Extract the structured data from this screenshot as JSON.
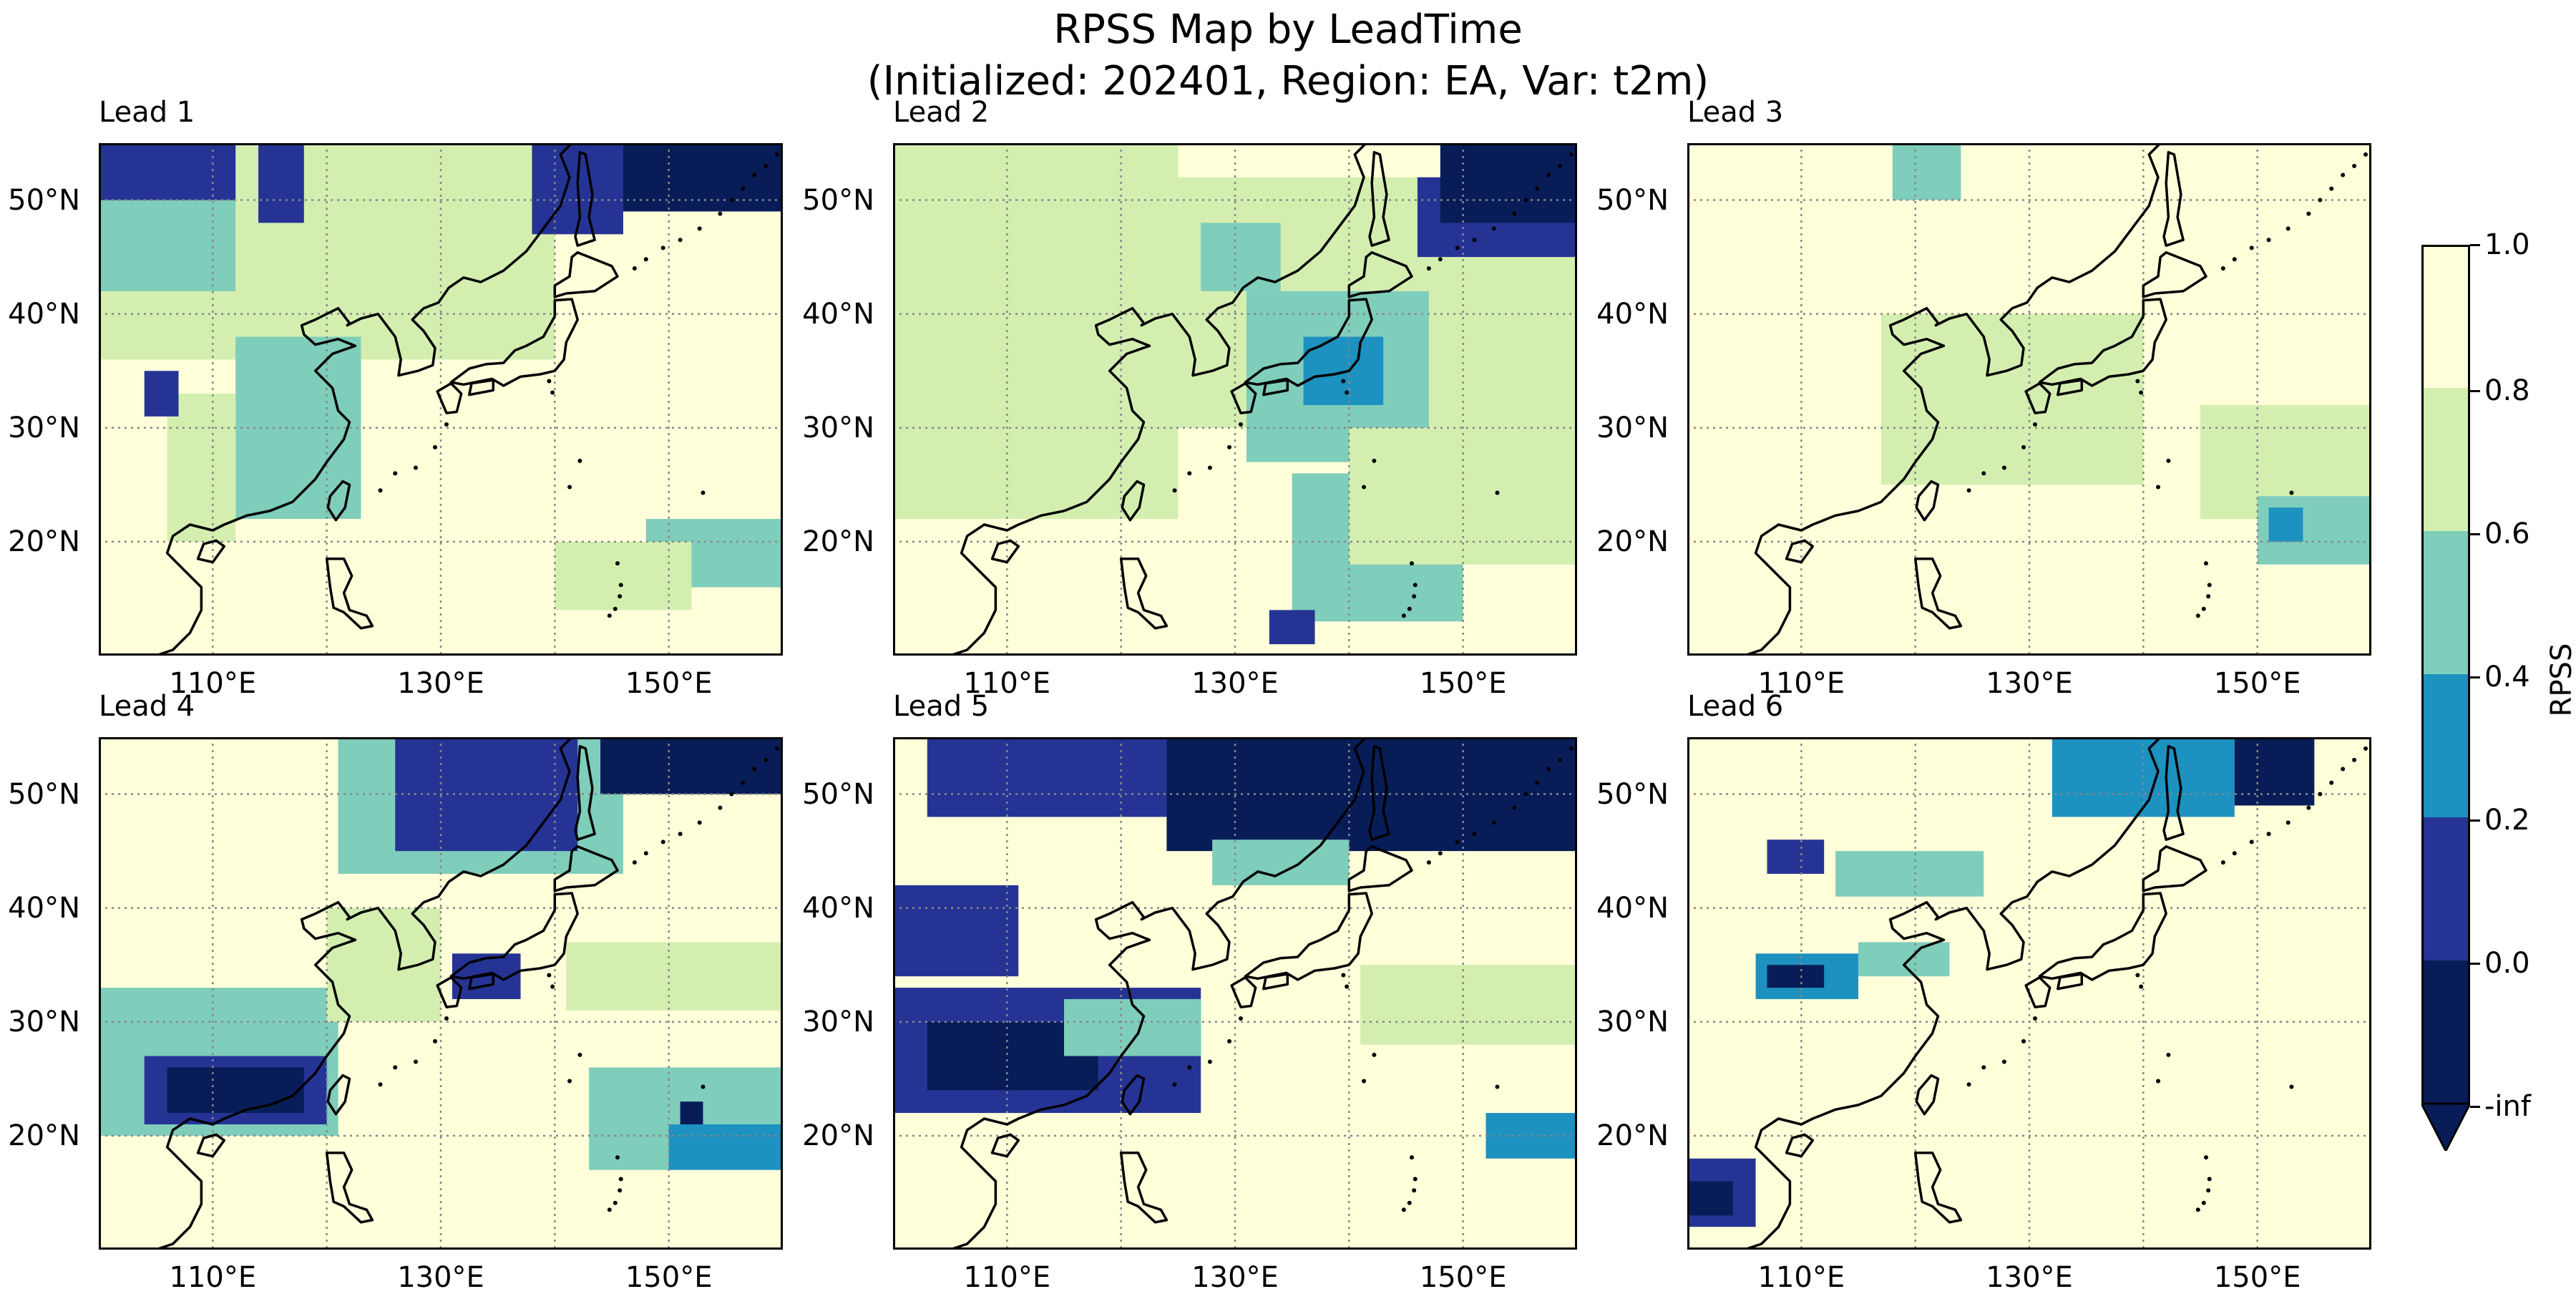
{
  "title_line1": "RPSS Map by LeadTime",
  "title_line2": "(Initialized: 202401, Region: EA, Var: t2m)",
  "panels": [
    {
      "label": "Lead 1"
    },
    {
      "label": "Lead 2"
    },
    {
      "label": "Lead 3"
    },
    {
      "label": "Lead 4"
    },
    {
      "label": "Lead 5"
    },
    {
      "label": "Lead 6"
    }
  ],
  "axes": {
    "lat_ticks": [
      "20°N",
      "30°N",
      "40°N",
      "50°N"
    ],
    "lon_ticks": [
      "110°E",
      "130°E",
      "150°E"
    ]
  },
  "colorbar": {
    "label": "RPSS",
    "ticks": [
      "-inf",
      "0.0",
      "0.2",
      "0.4",
      "0.6",
      "0.8",
      "1.0"
    ],
    "colors": [
      "#081d58",
      "#253494",
      "#1d91c0",
      "#7fcdbb",
      "#d4eeb0",
      "#ffffda"
    ]
  },
  "chart_data": {
    "type": "heatmap",
    "variable": "RPSS",
    "lon_range_degE": [
      100,
      160
    ],
    "lat_range_degN": [
      10,
      55
    ],
    "gridlines": true,
    "levels": [
      0.0,
      0.2,
      0.4,
      0.6,
      0.8,
      1.0
    ],
    "panels": [
      {
        "lead": 1,
        "regions": [
          {
            "class": 4,
            "lon": [
              100,
              140
            ],
            "lat": [
              36,
              55
            ]
          },
          {
            "class": 3,
            "lon": [
              100,
              112
            ],
            "lat": [
              42,
              55
            ]
          },
          {
            "class": 1,
            "lon": [
              100,
              112
            ],
            "lat": [
              50,
              55
            ]
          },
          {
            "class": 1,
            "lon": [
              114,
              118
            ],
            "lat": [
              48,
              55
            ]
          },
          {
            "class": 0,
            "lon": [
              145,
              160
            ],
            "lat": [
              49,
              55
            ]
          },
          {
            "class": 1,
            "lon": [
              138,
              146
            ],
            "lat": [
              47,
              55
            ]
          },
          {
            "class": 3,
            "lon": [
              112,
              123
            ],
            "lat": [
              22,
              38
            ]
          },
          {
            "class": 4,
            "lon": [
              106,
              112
            ],
            "lat": [
              20,
              33
            ]
          },
          {
            "class": 1,
            "lon": [
              104,
              107
            ],
            "lat": [
              31,
              35
            ]
          },
          {
            "class": 3,
            "lon": [
              148,
              160
            ],
            "lat": [
              16,
              22
            ]
          },
          {
            "class": 4,
            "lon": [
              140,
              152
            ],
            "lat": [
              14,
              20
            ]
          }
        ]
      },
      {
        "lead": 2,
        "regions": [
          {
            "class": 4,
            "lon": [
              100,
              125
            ],
            "lat": [
              22,
              55
            ]
          },
          {
            "class": 4,
            "lon": [
              125,
              160
            ],
            "lat": [
              30,
              52
            ]
          },
          {
            "class": 3,
            "lon": [
              131,
              147
            ],
            "lat": [
              27,
              42
            ]
          },
          {
            "class": 2,
            "lon": [
              136,
              143
            ],
            "lat": [
              32,
              38
            ]
          },
          {
            "class": 3,
            "lon": [
              127,
              134
            ],
            "lat": [
              42,
              48
            ]
          },
          {
            "class": 1,
            "lon": [
              146,
              160
            ],
            "lat": [
              45,
              52
            ]
          },
          {
            "class": 0,
            "lon": [
              148,
              160
            ],
            "lat": [
              48,
              55
            ]
          },
          {
            "class": 3,
            "lon": [
              135,
              150
            ],
            "lat": [
              13,
              26
            ]
          },
          {
            "class": 1,
            "lon": [
              133,
              137
            ],
            "lat": [
              11,
              14
            ]
          },
          {
            "class": 4,
            "lon": [
              140,
              160
            ],
            "lat": [
              18,
              30
            ]
          }
        ]
      },
      {
        "lead": 3,
        "regions": [
          {
            "class": 3,
            "lon": [
              118,
              124
            ],
            "lat": [
              50,
              55
            ]
          },
          {
            "class": 4,
            "lon": [
              117,
              140
            ],
            "lat": [
              25,
              40
            ]
          },
          {
            "class": 4,
            "lon": [
              145,
              160
            ],
            "lat": [
              22,
              32
            ]
          },
          {
            "class": 3,
            "lon": [
              150,
              160
            ],
            "lat": [
              18,
              24
            ]
          },
          {
            "class": 2,
            "lon": [
              151,
              154
            ],
            "lat": [
              20,
              23
            ]
          }
        ]
      },
      {
        "lead": 4,
        "regions": [
          {
            "class": 3,
            "lon": [
              121,
              146
            ],
            "lat": [
              43,
              55
            ]
          },
          {
            "class": 1,
            "lon": [
              126,
              142
            ],
            "lat": [
              45,
              55
            ]
          },
          {
            "class": 0,
            "lon": [
              144,
              160
            ],
            "lat": [
              50,
              55
            ]
          },
          {
            "class": 3,
            "lon": [
              100,
              121
            ],
            "lat": [
              20,
              33
            ]
          },
          {
            "class": 1,
            "lon": [
              104,
              120
            ],
            "lat": [
              21,
              27
            ]
          },
          {
            "class": 0,
            "lon": [
              106,
              118
            ],
            "lat": [
              22,
              26
            ]
          },
          {
            "class": 4,
            "lon": [
              120,
              130
            ],
            "lat": [
              30,
              40
            ]
          },
          {
            "class": 1,
            "lon": [
              131,
              137
            ],
            "lat": [
              32,
              36
            ]
          },
          {
            "class": 4,
            "lon": [
              141,
              160
            ],
            "lat": [
              31,
              37
            ]
          },
          {
            "class": 3,
            "lon": [
              143,
              160
            ],
            "lat": [
              17,
              26
            ]
          },
          {
            "class": 2,
            "lon": [
              150,
              160
            ],
            "lat": [
              17,
              21
            ]
          },
          {
            "class": 0,
            "lon": [
              151,
              153
            ],
            "lat": [
              21,
              23
            ]
          }
        ]
      },
      {
        "lead": 5,
        "regions": [
          {
            "class": 1,
            "lon": [
              103,
              160
            ],
            "lat": [
              48,
              55
            ]
          },
          {
            "class": 0,
            "lon": [
              124,
              160
            ],
            "lat": [
              45,
              55
            ]
          },
          {
            "class": 3,
            "lon": [
              128,
              140
            ],
            "lat": [
              42,
              46
            ]
          },
          {
            "class": 1,
            "lon": [
              100,
              111
            ],
            "lat": [
              34,
              42
            ]
          },
          {
            "class": 1,
            "lon": [
              100,
              127
            ],
            "lat": [
              22,
              33
            ]
          },
          {
            "class": 0,
            "lon": [
              103,
              118
            ],
            "lat": [
              24,
              30
            ]
          },
          {
            "class": 3,
            "lon": [
              115,
              127
            ],
            "lat": [
              27,
              32
            ]
          },
          {
            "class": 4,
            "lon": [
              141,
              160
            ],
            "lat": [
              28,
              35
            ]
          },
          {
            "class": 2,
            "lon": [
              152,
              160
            ],
            "lat": [
              18,
              22
            ]
          }
        ]
      },
      {
        "lead": 6,
        "regions": [
          {
            "class": 2,
            "lon": [
              132,
              148
            ],
            "lat": [
              48,
              55
            ]
          },
          {
            "class": 0,
            "lon": [
              148,
              155
            ],
            "lat": [
              49,
              55
            ]
          },
          {
            "class": 1,
            "lon": [
              107,
              112
            ],
            "lat": [
              43,
              46
            ]
          },
          {
            "class": 3,
            "lon": [
              113,
              126
            ],
            "lat": [
              41,
              45
            ]
          },
          {
            "class": 2,
            "lon": [
              106,
              115
            ],
            "lat": [
              32,
              36
            ]
          },
          {
            "class": 0,
            "lon": [
              107,
              112
            ],
            "lat": [
              33,
              35
            ]
          },
          {
            "class": 3,
            "lon": [
              115,
              123
            ],
            "lat": [
              34,
              37
            ]
          },
          {
            "class": 1,
            "lon": [
              100,
              106
            ],
            "lat": [
              12,
              18
            ]
          },
          {
            "class": 0,
            "lon": [
              100,
              104
            ],
            "lat": [
              13,
              16
            ]
          }
        ]
      }
    ]
  }
}
